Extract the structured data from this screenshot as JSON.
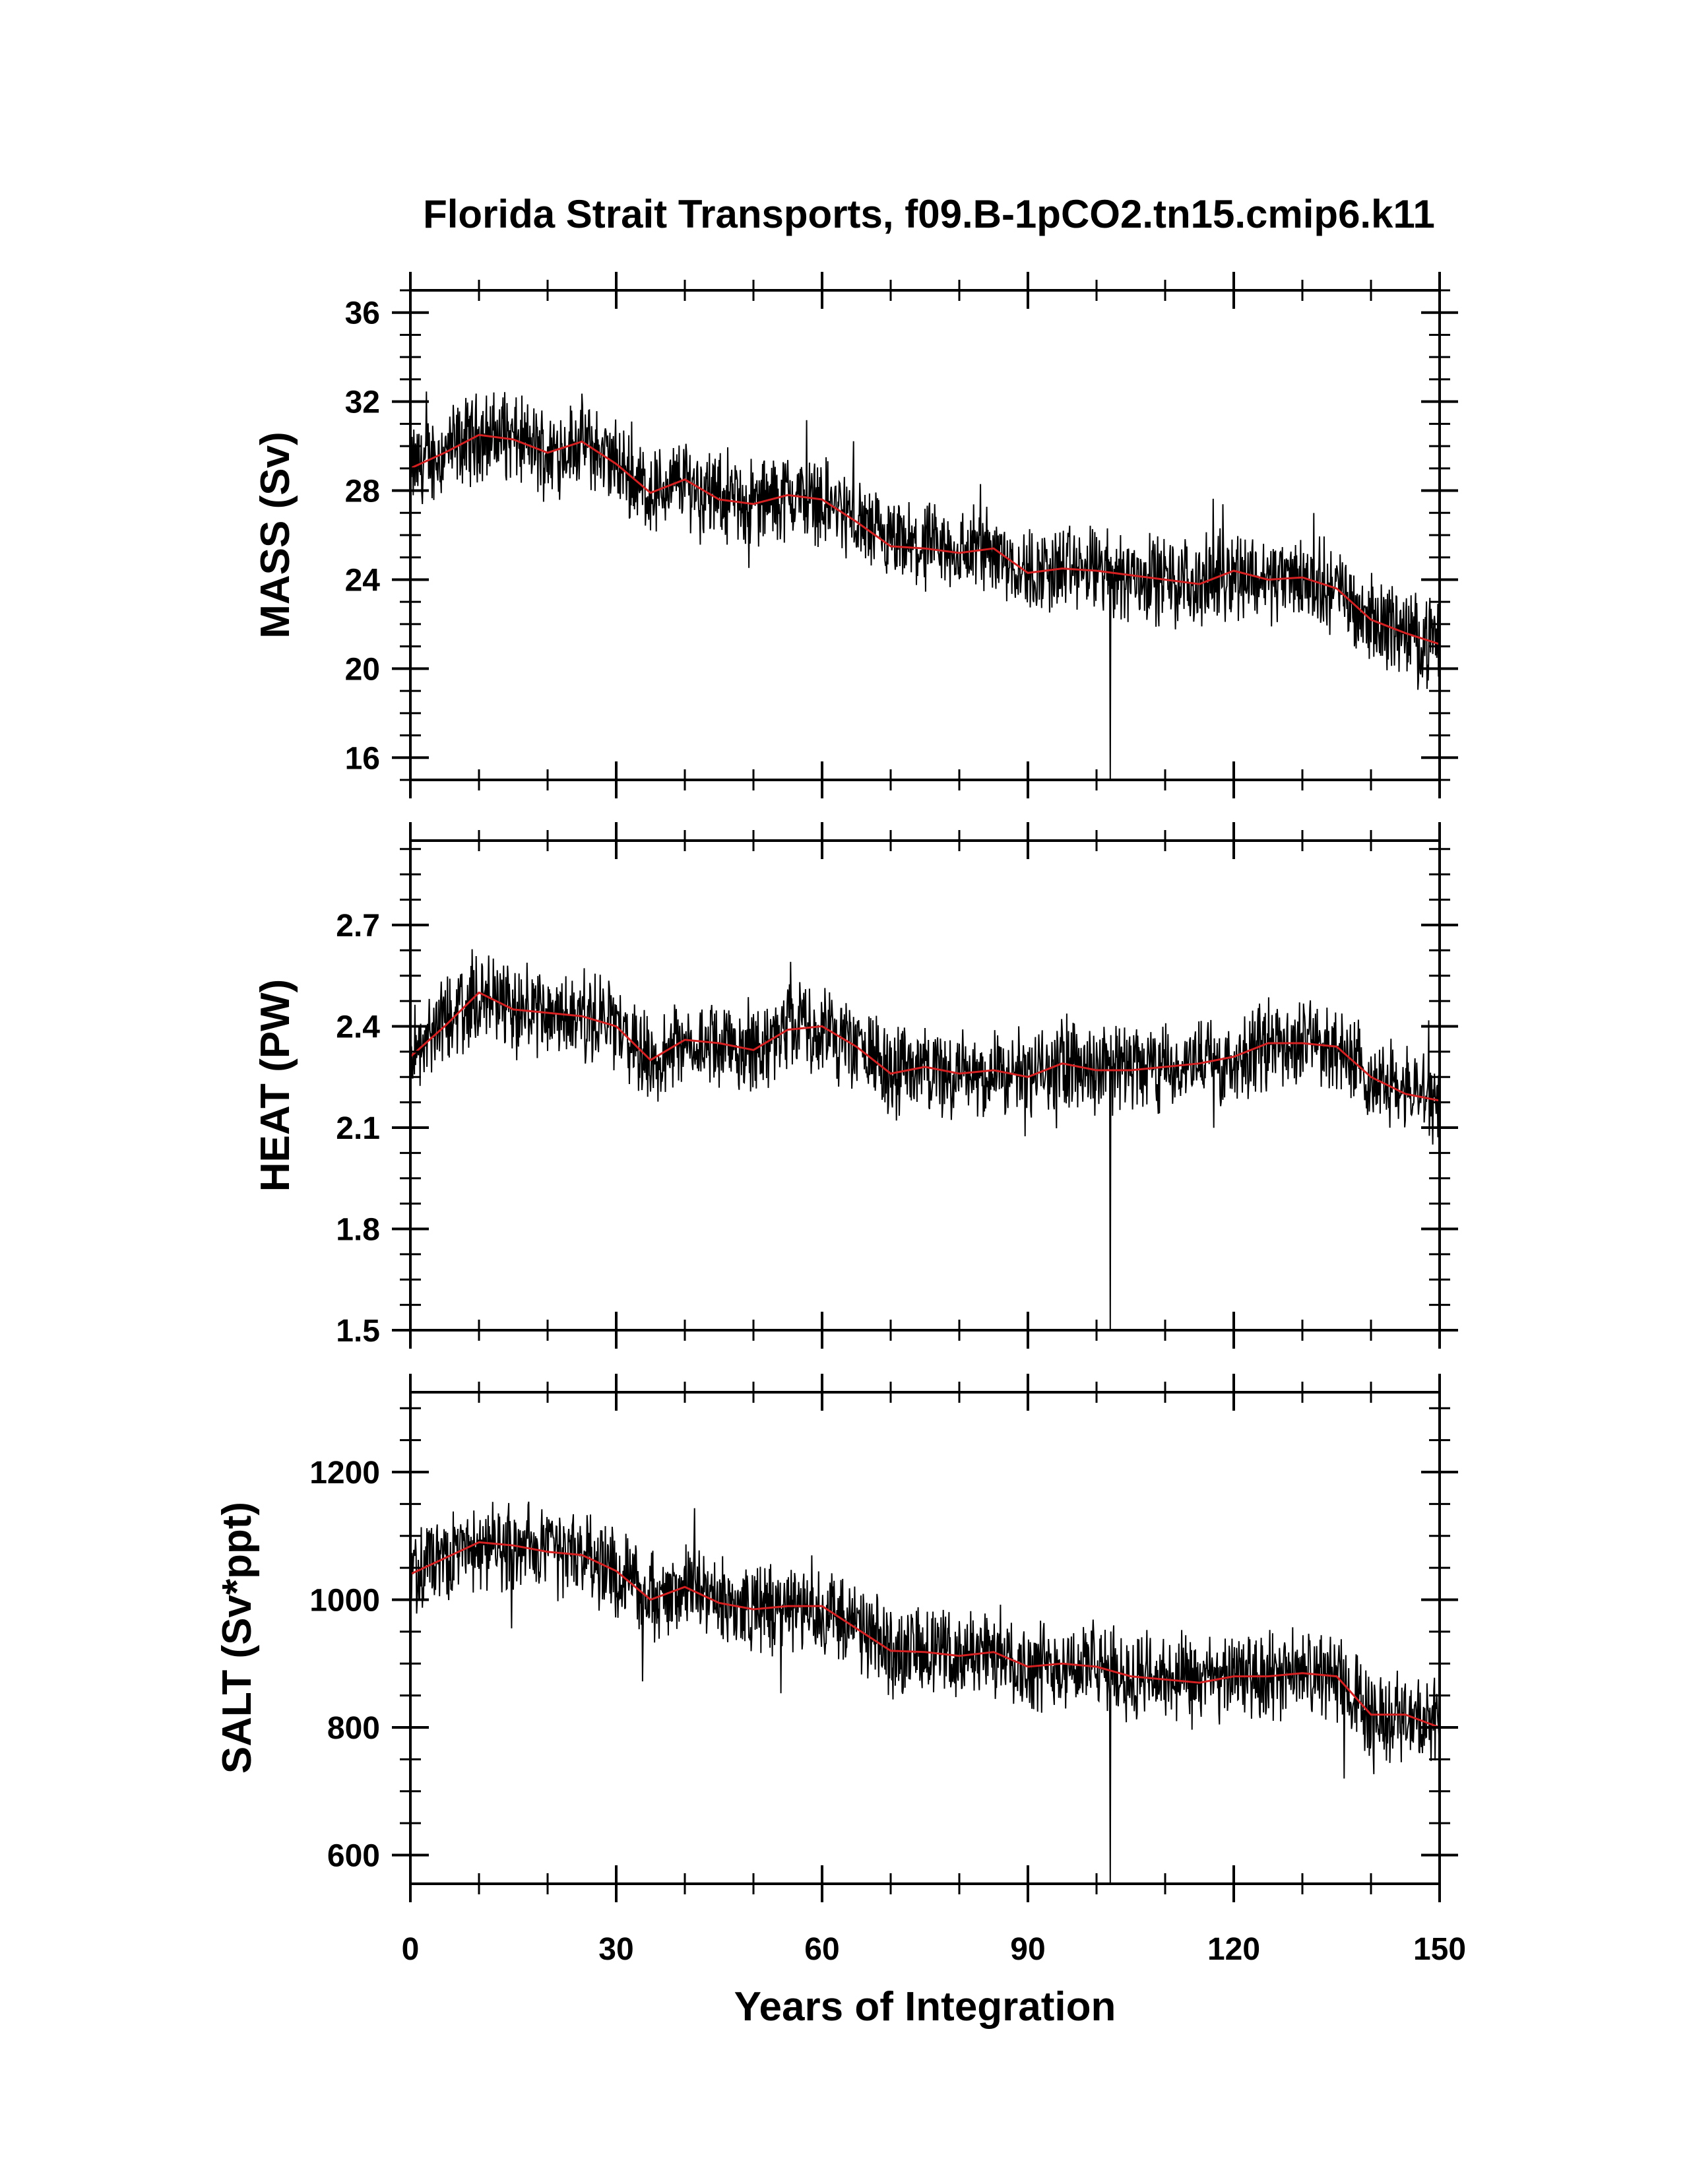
{
  "chart_data": {
    "type": "line",
    "title": "Florida Strait Transports, f09.B-1pCO2.tn15.cmip6.k11",
    "xlabel": "Years of Integration",
    "xlim": [
      0,
      150
    ],
    "xticks": [
      "0",
      "30",
      "60",
      "90",
      "120",
      "150"
    ],
    "colors": {
      "monthly": "#000000",
      "annual_mean": "#d42020"
    },
    "panels": [
      {
        "ylabel": "MASS (Sv)",
        "ylim": [
          15,
          37
        ],
        "yticks": [
          "16",
          "20",
          "24",
          "28",
          "32",
          "36"
        ],
        "series": [
          {
            "x": [
              0,
              5,
              10,
              15,
              20,
              25,
              30,
              35,
              40,
              45,
              50,
              55,
              60,
              65,
              70,
              75,
              80,
              85,
              90,
              95,
              100,
              105,
              110,
              115,
              120,
              125,
              130,
              135,
              140,
              145,
              150
            ],
            "values": [
              29.0,
              29.7,
              30.5,
              30.3,
              29.7,
              30.2,
              29.2,
              27.9,
              28.5,
              27.6,
              27.4,
              27.8,
              27.6,
              26.6,
              25.5,
              25.4,
              25.2,
              25.4,
              24.3,
              24.5,
              24.4,
              24.2,
              24.0,
              23.8,
              24.4,
              24.0,
              24.1,
              23.6,
              22.2,
              21.6,
              21.1
            ]
          }
        ]
      },
      {
        "ylabel": "HEAT (PW)",
        "ylim": [
          1.5,
          2.95
        ],
        "yticks": [
          "1.5",
          "1.8",
          "2.1",
          "2.4",
          "2.7"
        ],
        "series": [
          {
            "x": [
              0,
              5,
              10,
              15,
              20,
              25,
              30,
              35,
              40,
              45,
              50,
              55,
              60,
              65,
              70,
              75,
              80,
              85,
              90,
              95,
              100,
              105,
              110,
              115,
              120,
              125,
              130,
              135,
              140,
              145,
              150
            ],
            "values": [
              2.31,
              2.4,
              2.5,
              2.45,
              2.44,
              2.43,
              2.4,
              2.3,
              2.36,
              2.35,
              2.33,
              2.39,
              2.4,
              2.34,
              2.26,
              2.28,
              2.26,
              2.27,
              2.25,
              2.29,
              2.27,
              2.27,
              2.28,
              2.29,
              2.31,
              2.35,
              2.35,
              2.34,
              2.25,
              2.2,
              2.18
            ]
          }
        ]
      },
      {
        "ylabel": "SALT (Sv*ppt)",
        "ylim": [
          555,
          1325
        ],
        "yticks": [
          "600",
          "800",
          "1000",
          "1200"
        ],
        "series": [
          {
            "x": [
              0,
              5,
              10,
              15,
              20,
              25,
              30,
              35,
              40,
              45,
              50,
              55,
              60,
              65,
              70,
              75,
              80,
              85,
              90,
              95,
              100,
              105,
              110,
              115,
              120,
              125,
              130,
              135,
              140,
              145,
              150
            ],
            "values": [
              1040,
              1065,
              1090,
              1085,
              1075,
              1070,
              1045,
              1000,
              1020,
              995,
              985,
              990,
              990,
              955,
              920,
              918,
              912,
              918,
              895,
              900,
              895,
              880,
              875,
              870,
              880,
              880,
              885,
              880,
              820,
              820,
              800
            ]
          }
        ]
      }
    ]
  }
}
